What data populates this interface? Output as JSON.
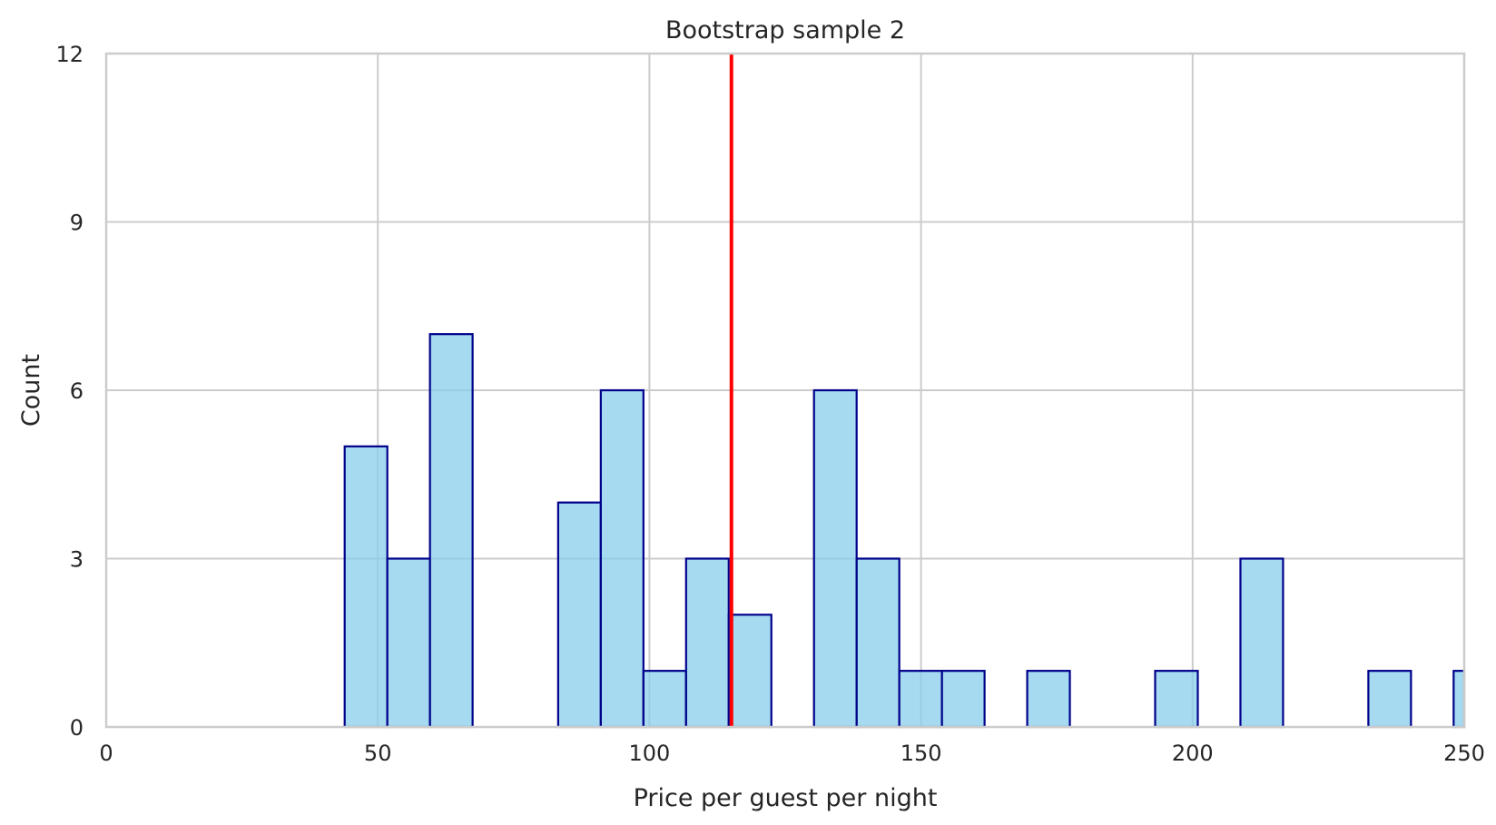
{
  "chart_data": {
    "type": "bar",
    "subtype": "histogram",
    "title": "Bootstrap sample 2",
    "xlabel": "Price per guest per night",
    "ylabel": "Count",
    "xlim": [
      0,
      250
    ],
    "ylim": [
      0,
      12
    ],
    "xticks": [
      "0",
      "50",
      "100",
      "150",
      "200",
      "250"
    ],
    "yticks": [
      "0",
      "3",
      "6",
      "9",
      "12"
    ],
    "grid": true,
    "bin_width": 7.85,
    "bins": [
      {
        "start": 43.9,
        "count": 5
      },
      {
        "start": 51.75,
        "count": 3
      },
      {
        "start": 59.6,
        "count": 7
      },
      {
        "start": 83.2,
        "count": 4
      },
      {
        "start": 91.05,
        "count": 6
      },
      {
        "start": 98.9,
        "count": 1
      },
      {
        "start": 106.75,
        "count": 3
      },
      {
        "start": 114.6,
        "count": 2
      },
      {
        "start": 130.3,
        "count": 6
      },
      {
        "start": 138.15,
        "count": 3
      },
      {
        "start": 146.0,
        "count": 1
      },
      {
        "start": 153.85,
        "count": 1
      },
      {
        "start": 169.55,
        "count": 1
      },
      {
        "start": 193.1,
        "count": 1
      },
      {
        "start": 208.8,
        "count": 3
      },
      {
        "start": 232.35,
        "count": 1
      },
      {
        "start": 248.05,
        "count": 1
      }
    ],
    "reference_line": {
      "x": 115.1,
      "color": "#ff0000"
    },
    "colors": {
      "bar_fill": "#87ceeb",
      "bar_edge": "#00008b",
      "grid": "#cccccc",
      "axis": "#cccccc",
      "text": "#262626"
    }
  }
}
